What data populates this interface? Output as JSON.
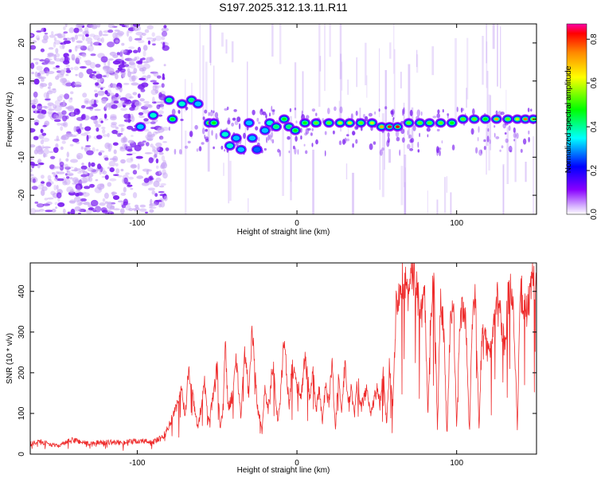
{
  "title": "S197.2025.312.13.11.R11",
  "colors": {
    "snr_line": "#ee2c2c",
    "speckle": "#7a1cf0",
    "speckle_light": "#c9a8f5",
    "frame": "#000000"
  },
  "chart_data": [
    {
      "type": "heatmap",
      "name": "spectrogram",
      "xlabel": "Height of straight line (km)",
      "ylabel": "Frequency (Hz)",
      "xlim": [
        -167,
        150
      ],
      "ylim": [
        -25,
        25
      ],
      "xticks": [
        -100,
        0,
        100
      ],
      "xtick_labels": [
        "-100",
        "0",
        "100"
      ],
      "yticks": [
        -20,
        -10,
        0,
        10,
        20
      ],
      "ytick_labels": [
        "-20",
        "-10",
        "0",
        "10",
        "20"
      ],
      "colorbar": {
        "label": "Normalized spectral amplitude",
        "range": [
          0,
          0.87
        ],
        "ticks": [
          0,
          0.2,
          0.4,
          0.6,
          0.8
        ],
        "tick_labels": [
          "0.0",
          "0.2",
          "0.4",
          "0.6",
          "0.8"
        ],
        "colormap": [
          "#ffffff",
          "#8800ff",
          "#0000ff",
          "#00ffff",
          "#00ff00",
          "#ffff00",
          "#ff8800",
          "#ff0000",
          "#ff00aa"
        ]
      },
      "ridge": [
        {
          "x": -98,
          "y": -2,
          "v": 0.35
        },
        {
          "x": -90,
          "y": 1,
          "v": 0.4
        },
        {
          "x": -80,
          "y": 5,
          "v": 0.45
        },
        {
          "x": -78,
          "y": 0,
          "v": 0.5
        },
        {
          "x": -72,
          "y": 4,
          "v": 0.4
        },
        {
          "x": -66,
          "y": 5,
          "v": 0.45
        },
        {
          "x": -62,
          "y": 4,
          "v": 0.35
        },
        {
          "x": -55,
          "y": -1,
          "v": 0.55
        },
        {
          "x": -52,
          "y": -1,
          "v": 0.5
        },
        {
          "x": -45,
          "y": -4,
          "v": 0.4
        },
        {
          "x": -42,
          "y": -7,
          "v": 0.4
        },
        {
          "x": -38,
          "y": -5,
          "v": 0.35
        },
        {
          "x": -35,
          "y": -8,
          "v": 0.35
        },
        {
          "x": -30,
          "y": -1,
          "v": 0.35
        },
        {
          "x": -28,
          "y": -5,
          "v": 0.35
        },
        {
          "x": -25,
          "y": -8,
          "v": 0.3
        },
        {
          "x": -20,
          "y": -3,
          "v": 0.35
        },
        {
          "x": -17,
          "y": -1,
          "v": 0.4
        },
        {
          "x": -13,
          "y": -2,
          "v": 0.45
        },
        {
          "x": -8,
          "y": 0,
          "v": 0.5
        },
        {
          "x": -5,
          "y": -2,
          "v": 0.45
        },
        {
          "x": -1,
          "y": -3,
          "v": 0.5
        },
        {
          "x": 5,
          "y": -1,
          "v": 0.5
        },
        {
          "x": 12,
          "y": -1,
          "v": 0.55
        },
        {
          "x": 20,
          "y": -1,
          "v": 0.55
        },
        {
          "x": 27,
          "y": -1,
          "v": 0.6
        },
        {
          "x": 33,
          "y": -1,
          "v": 0.65
        },
        {
          "x": 40,
          "y": -1,
          "v": 0.55
        },
        {
          "x": 47,
          "y": -1,
          "v": 0.6
        },
        {
          "x": 53,
          "y": -2,
          "v": 0.7
        },
        {
          "x": 58,
          "y": -2,
          "v": 0.8
        },
        {
          "x": 63,
          "y": -2,
          "v": 0.82
        },
        {
          "x": 70,
          "y": -1,
          "v": 0.55
        },
        {
          "x": 77,
          "y": -1,
          "v": 0.55
        },
        {
          "x": 83,
          "y": -1,
          "v": 0.55
        },
        {
          "x": 90,
          "y": -1,
          "v": 0.55
        },
        {
          "x": 97,
          "y": -1,
          "v": 0.5
        },
        {
          "x": 104,
          "y": 0,
          "v": 0.55
        },
        {
          "x": 111,
          "y": 0,
          "v": 0.55
        },
        {
          "x": 118,
          "y": 0,
          "v": 0.5
        },
        {
          "x": 125,
          "y": 0,
          "v": 0.7
        },
        {
          "x": 132,
          "y": 0,
          "v": 0.55
        },
        {
          "x": 138,
          "y": 0,
          "v": 0.6
        },
        {
          "x": 143,
          "y": 0,
          "v": 0.75
        },
        {
          "x": 148,
          "y": 0,
          "v": 0.6
        }
      ]
    },
    {
      "type": "line",
      "name": "snr",
      "xlabel": "Height of straight line (km)",
      "ylabel": "SNR (10 * v/v)",
      "xlim": [
        -167,
        150
      ],
      "ylim": [
        0,
        470
      ],
      "xticks": [
        -100,
        0,
        100
      ],
      "xtick_labels": [
        "-100",
        "0",
        "100"
      ],
      "yticks": [
        0,
        100,
        200,
        300,
        400
      ],
      "ytick_labels": [
        "0",
        "100",
        "200",
        "300",
        "400"
      ],
      "series": [
        {
          "name": "SNR",
          "x": [
            -167,
            -160,
            -150,
            -140,
            -130,
            -120,
            -110,
            -100,
            -90,
            -84,
            -80,
            -75,
            -72,
            -70,
            -68,
            -65,
            -62,
            -60,
            -58,
            -55,
            -52,
            -50,
            -48,
            -46,
            -45,
            -43,
            -40,
            -38,
            -35,
            -33,
            -30,
            -28,
            -25,
            -22,
            -20,
            -18,
            -15,
            -12,
            -10,
            -8,
            -5,
            -3,
            0,
            3,
            5,
            8,
            10,
            12,
            14,
            16,
            18,
            20,
            22,
            24,
            26,
            28,
            30,
            32,
            34,
            36,
            38,
            40,
            42,
            44,
            46,
            48,
            50,
            52,
            54,
            56,
            58,
            60,
            62,
            64,
            66,
            68,
            70,
            72,
            74,
            76,
            78,
            80,
            82,
            84,
            86,
            88,
            90,
            92,
            94,
            96,
            98,
            100,
            102,
            104,
            106,
            108,
            110,
            112,
            114,
            116,
            118,
            120,
            122,
            124,
            126,
            128,
            130,
            132,
            134,
            136,
            138,
            140,
            142,
            144,
            146,
            148,
            150
          ],
          "y": [
            25,
            30,
            20,
            35,
            25,
            30,
            28,
            32,
            30,
            40,
            70,
            120,
            160,
            90,
            200,
            140,
            60,
            120,
            180,
            80,
            150,
            210,
            60,
            120,
            280,
            110,
            150,
            230,
            90,
            260,
            140,
            320,
            120,
            60,
            160,
            110,
            230,
            80,
            160,
            290,
            120,
            220,
            170,
            150,
            240,
            140,
            200,
            110,
            160,
            80,
            170,
            120,
            230,
            60,
            190,
            90,
            230,
            120,
            160,
            90,
            190,
            110,
            140,
            160,
            100,
            130,
            160,
            120,
            200,
            80,
            230,
            120,
            360,
            410,
            430,
            420,
            390,
            450,
            420,
            380,
            350,
            400,
            90,
            380,
            400,
            60,
            380,
            300,
            40,
            330,
            360,
            60,
            320,
            370,
            300,
            50,
            350,
            380,
            60,
            320,
            280,
            240,
            300,
            350,
            400,
            330,
            260,
            380,
            410,
            320,
            60,
            410,
            360,
            350,
            390,
            430,
            420
          ]
        }
      ]
    }
  ]
}
